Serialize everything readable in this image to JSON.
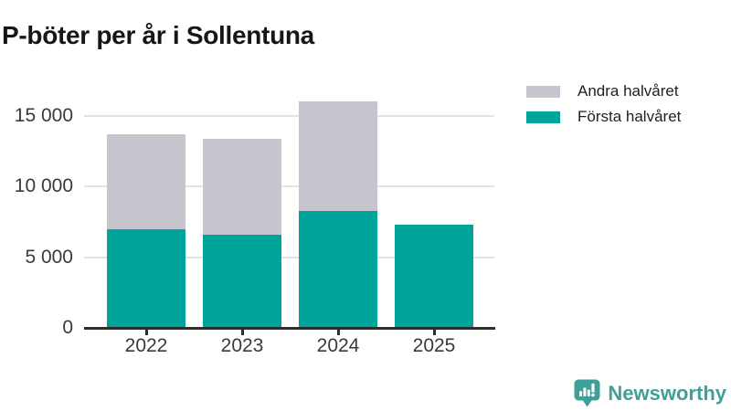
{
  "title": "P-böter per år i Sollentuna",
  "colors": {
    "first_half": "#00a49a",
    "second_half": "#c7c6ce",
    "axis": "#2d2d2d",
    "grid": "#e3e3e6",
    "tick_text": "#3a3a3a",
    "title_text": "#161616",
    "brand": "#419e99"
  },
  "legend": [
    {
      "label": "Andra halvåret",
      "color": "#c7c6ce"
    },
    {
      "label": "Första halvåret",
      "color": "#00a49a"
    }
  ],
  "chart_data": {
    "type": "bar",
    "stacked": true,
    "title": "P-böter per år i Sollentuna",
    "xlabel": "",
    "ylabel": "",
    "categories": [
      "2022",
      "2023",
      "2024",
      "2025"
    ],
    "series": [
      {
        "name": "Första halvåret",
        "color": "#00a49a",
        "values": [
          7000,
          6600,
          8300,
          7300
        ]
      },
      {
        "name": "Andra halvåret",
        "color": "#c7c6ce",
        "values": [
          6700,
          6800,
          7700,
          0
        ]
      }
    ],
    "totals": [
      13700,
      13400,
      16000,
      7300
    ],
    "ylim": [
      0,
      16350
    ],
    "y_ticks": [
      0,
      5000,
      10000,
      15000
    ],
    "y_tick_labels": [
      "0",
      "5 000",
      "10 000",
      "15 000"
    ],
    "grid": "horizontal",
    "legend_position": "top-right"
  },
  "footer": {
    "brand": "Newsworthy"
  }
}
